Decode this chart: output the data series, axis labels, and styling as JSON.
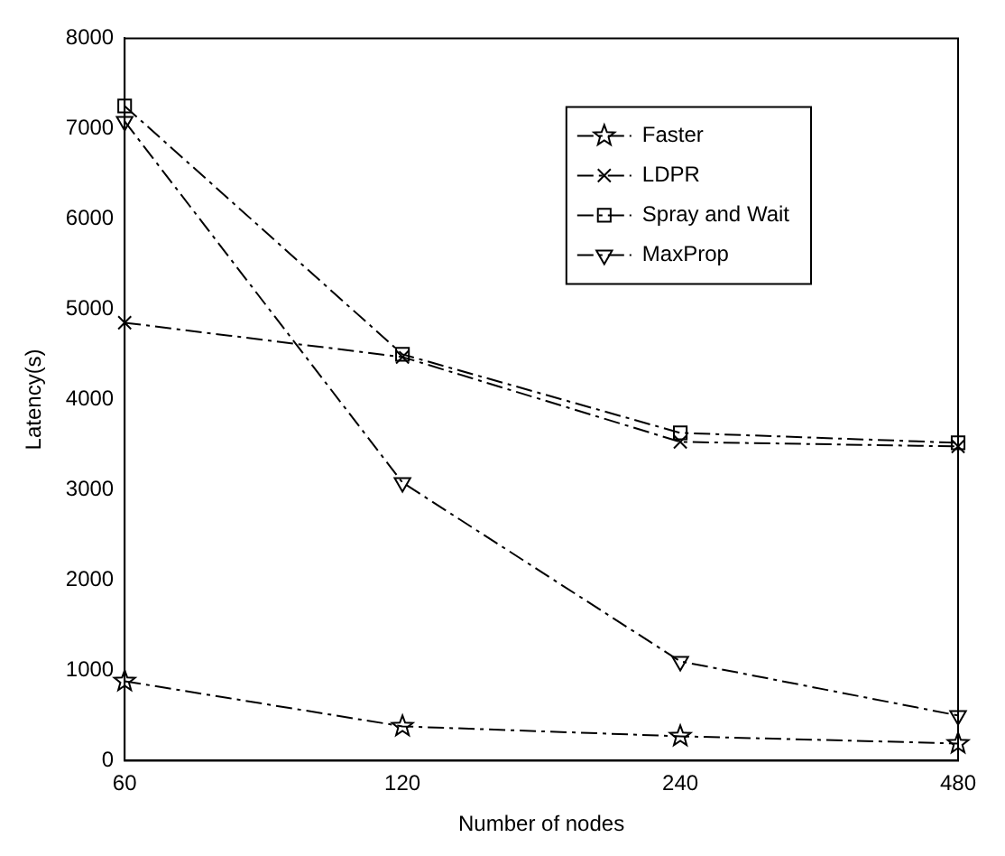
{
  "chart_data": {
    "type": "line",
    "xlabel": "Number of nodes",
    "ylabel": "Latency(s)",
    "categories": [
      "60",
      "120",
      "240",
      "480"
    ],
    "ylim": [
      0,
      8000
    ],
    "yticks": [
      0,
      1000,
      2000,
      3000,
      4000,
      5000,
      6000,
      7000,
      8000
    ],
    "grid": false,
    "legend": "top right",
    "line_style": "dashed",
    "series": [
      {
        "name": "Faster",
        "color": "#000000",
        "marker": "star",
        "values": [
          880,
          380,
          270,
          190
        ]
      },
      {
        "name": "LDPR",
        "color": "#000000",
        "marker": "cross",
        "values": [
          4850,
          4470,
          3530,
          3480
        ]
      },
      {
        "name": "Spray and Wait",
        "color": "#000000",
        "marker": "square",
        "values": [
          7250,
          4500,
          3630,
          3520
        ]
      },
      {
        "name": "MaxProp",
        "color": "#000000",
        "marker": "triangle",
        "values": [
          7080,
          3080,
          1100,
          500
        ]
      }
    ]
  }
}
